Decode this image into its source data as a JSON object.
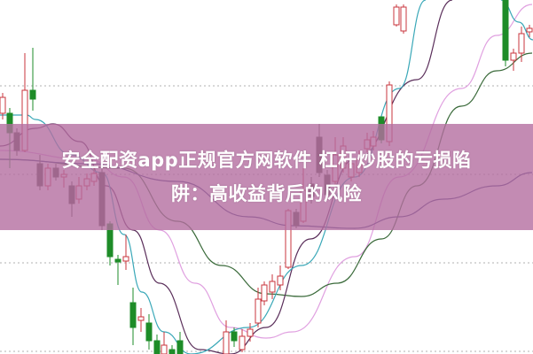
{
  "headline": {
    "line1": "安全配资app正规官方网软件 杠杆炒股的亏损陷",
    "line2": "阱：高收益背后的风险"
  },
  "colors": {
    "banner": "#b46ea0",
    "candle_up": "#c8343c",
    "candle_down": "#1e8c28",
    "candle_down_dark": "#4a4a40",
    "ma_cyan": "#3aa8b8",
    "ma_purple": "#5a2e5a",
    "ma_pink": "#e0a0e0",
    "ma_green": "#3a6a3a",
    "ma_navy": "#3a3a78",
    "grid": "#b0b0b0"
  }
}
